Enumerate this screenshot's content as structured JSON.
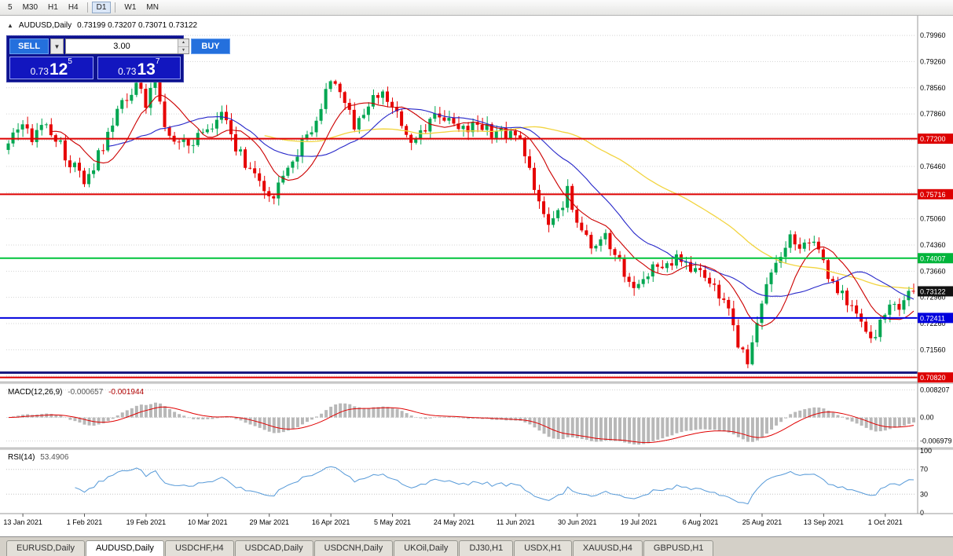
{
  "toolbar": {
    "groups": [
      [
        "5",
        "M30",
        "H1",
        "H4"
      ],
      [
        "D1"
      ],
      [
        "W1",
        "MN"
      ]
    ],
    "active": "D1"
  },
  "chart_header": {
    "collapse_icon": "▲",
    "title": "AUDUSD,Daily",
    "ohlc": "0.73199 0.73207 0.73071 0.73122"
  },
  "trade_widget": {
    "sell_label": "SELL",
    "buy_label": "BUY",
    "volume": "3.00",
    "dropdown_icon": "▼",
    "spin_up_icon": "▲",
    "spin_down_icon": "▼",
    "sell_price": {
      "prefix": "0.73",
      "big": "12",
      "sup": "5"
    },
    "buy_price": {
      "prefix": "0.73",
      "big": "13",
      "sup": "7"
    }
  },
  "price_axis": {
    "gridlines": [
      "0.79960",
      "0.79260",
      "0.78560",
      "0.77860",
      "0.77160",
      "0.76460",
      "0.75760",
      "0.75060",
      "0.74360",
      "0.73660",
      "0.72960",
      "0.72260",
      "0.71560",
      "0.70860"
    ],
    "badges": [
      {
        "value": "0.77200",
        "color": "#dd0000"
      },
      {
        "value": "0.75716",
        "color": "#dd0000"
      },
      {
        "value": "0.74007",
        "color": "#00b43a"
      },
      {
        "value": "0.73122",
        "color": "#111111"
      },
      {
        "value": "0.72411",
        "color": "#0000dd"
      },
      {
        "value": "0.70820",
        "color": "#dd0000"
      }
    ]
  },
  "time_axis": [
    "13 Jan 2021",
    "1 Feb 2021",
    "19 Feb 2021",
    "10 Mar 2021",
    "29 Mar 2021",
    "16 Apr 2021",
    "5 May 2021",
    "24 May 2021",
    "11 Jun 2021",
    "30 Jun 2021",
    "19 Jul 2021",
    "6 Aug 2021",
    "25 Aug 2021",
    "13 Sep 2021",
    "1 Oct 2021"
  ],
  "indicators": {
    "macd": {
      "name": "MACD(12,26,9)",
      "value_main": "-0.000657",
      "value_signal": "-0.001944",
      "axis": [
        "0.008207",
        "0.00",
        "-0.006979"
      ]
    },
    "rsi": {
      "name": "RSI(14)",
      "value": "53.4906",
      "axis": [
        "100",
        "70",
        "30",
        "0"
      ],
      "levels": [
        70,
        30
      ]
    }
  },
  "tabs": [
    {
      "label": "EURUSD,Daily",
      "active": false
    },
    {
      "label": "AUDUSD,Daily",
      "active": true
    },
    {
      "label": "USDCHF,H4",
      "active": false
    },
    {
      "label": "USDCAD,Daily",
      "active": false
    },
    {
      "label": "USDCNH,Daily",
      "active": false
    },
    {
      "label": "UKOil,Daily",
      "active": false
    },
    {
      "label": "DJ30,H1",
      "active": false
    },
    {
      "label": "USDX,H1",
      "active": false
    },
    {
      "label": "XAUUSD,H4",
      "active": false
    },
    {
      "label": "GBPUSD,H1",
      "active": false
    }
  ],
  "chart_data": {
    "type": "candlestick",
    "symbol": "AUDUSD",
    "timeframe": "Daily",
    "candle_count": 192,
    "last_close": 0.73122,
    "first_tick_index": 3,
    "tick_step": 13,
    "waypoints": [
      [
        0,
        0.769
      ],
      [
        2,
        0.776
      ],
      [
        5,
        0.772
      ],
      [
        8,
        0.776
      ],
      [
        11,
        0.77
      ],
      [
        14,
        0.764
      ],
      [
        16,
        0.76
      ],
      [
        20,
        0.77
      ],
      [
        24,
        0.782
      ],
      [
        27,
        0.786
      ],
      [
        29,
        0.782
      ],
      [
        31,
        0.788
      ],
      [
        33,
        0.776
      ],
      [
        36,
        0.77
      ],
      [
        39,
        0.772
      ],
      [
        42,
        0.774
      ],
      [
        45,
        0.778
      ],
      [
        48,
        0.77
      ],
      [
        51,
        0.764
      ],
      [
        54,
        0.759
      ],
      [
        56,
        0.7565
      ],
      [
        58,
        0.761
      ],
      [
        61,
        0.768
      ],
      [
        64,
        0.775
      ],
      [
        67,
        0.785
      ],
      [
        69,
        0.788
      ],
      [
        71,
        0.78
      ],
      [
        73,
        0.776
      ],
      [
        76,
        0.782
      ],
      [
        79,
        0.784
      ],
      [
        81,
        0.78
      ],
      [
        83,
        0.776
      ],
      [
        85,
        0.77
      ],
      [
        88,
        0.774
      ],
      [
        91,
        0.779
      ],
      [
        94,
        0.776
      ],
      [
        97,
        0.774
      ],
      [
        100,
        0.776
      ],
      [
        103,
        0.773
      ],
      [
        106,
        0.774
      ],
      [
        108,
        0.772
      ],
      [
        110,
        0.764
      ],
      [
        112,
        0.754
      ],
      [
        114,
        0.748
      ],
      [
        116,
        0.752
      ],
      [
        118,
        0.758
      ],
      [
        120,
        0.75
      ],
      [
        123,
        0.744
      ],
      [
        126,
        0.745
      ],
      [
        129,
        0.739
      ],
      [
        131,
        0.734
      ],
      [
        133,
        0.732
      ],
      [
        135,
        0.736
      ],
      [
        137,
        0.739
      ],
      [
        139,
        0.737
      ],
      [
        141,
        0.74
      ],
      [
        143,
        0.738
      ],
      [
        146,
        0.736
      ],
      [
        148,
        0.733
      ],
      [
        150,
        0.73
      ],
      [
        152,
        0.725
      ],
      [
        154,
        0.718
      ],
      [
        156,
        0.712
      ],
      [
        158,
        0.723
      ],
      [
        159,
        0.729
      ],
      [
        161,
        0.735
      ],
      [
        163,
        0.74
      ],
      [
        165,
        0.745
      ],
      [
        168,
        0.743
      ],
      [
        170,
        0.744
      ],
      [
        172,
        0.738
      ],
      [
        174,
        0.734
      ],
      [
        176,
        0.73
      ],
      [
        178,
        0.726
      ],
      [
        180,
        0.723
      ],
      [
        182,
        0.718
      ],
      [
        184,
        0.723
      ],
      [
        186,
        0.7265
      ],
      [
        188,
        0.728
      ],
      [
        190,
        0.73
      ],
      [
        191,
        0.73122
      ]
    ],
    "hlines": [
      {
        "price": 0.772,
        "color": "#dd0000",
        "width": 2
      },
      {
        "price": 0.75716,
        "color": "#dd0000",
        "width": 2
      },
      {
        "price": 0.74007,
        "color": "#00c43c",
        "width": 2
      },
      {
        "price": 0.72411,
        "color": "#0000dd",
        "width": 2
      },
      {
        "price": 0.7095,
        "color": "#1a1a80",
        "width": 3
      },
      {
        "price": 0.7082,
        "color": "#dd0000",
        "width": 2
      }
    ],
    "colors": {
      "up": "#00a651",
      "down": "#e60000",
      "ma_fast": "#cc0000",
      "ma_mid": "#2626c9",
      "ma_slow": "#f2d43f",
      "macd_hist": "#b8b8b8",
      "macd_signal": "#e00000",
      "rsi": "#5599d8",
      "grid": "#d4d4d4"
    }
  }
}
